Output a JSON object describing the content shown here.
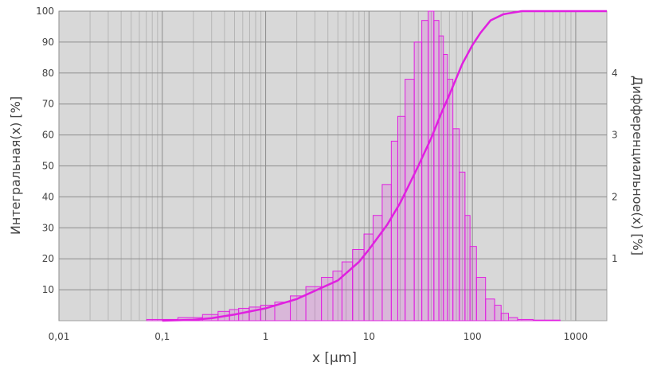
{
  "chart_data": {
    "type": "bar",
    "title": "",
    "xlabel": "x [µm]",
    "ylabel": "Интегральная(x) [%]",
    "ylabel_right": "Дифференциальное(x) [%]",
    "x_scale": "log",
    "xlim": [
      0.01,
      2000
    ],
    "ylim": [
      0,
      100
    ],
    "ylim_right": [
      0,
      5
    ],
    "grid": true,
    "legend": "none",
    "x_ticks": [
      {
        "value": 0.01,
        "label": "0,01"
      },
      {
        "value": 0.1,
        "label": "0,1"
      },
      {
        "value": 1,
        "label": "1"
      },
      {
        "value": 10,
        "label": "10"
      },
      {
        "value": 100,
        "label": "100"
      },
      {
        "value": 1000,
        "label": "1000"
      }
    ],
    "y_ticks": [
      {
        "value": 10,
        "label": "10"
      },
      {
        "value": 20,
        "label": "20"
      },
      {
        "value": 30,
        "label": "30"
      },
      {
        "value": 40,
        "label": "40"
      },
      {
        "value": 50,
        "label": "50"
      },
      {
        "value": 60,
        "label": "60"
      },
      {
        "value": 70,
        "label": "70"
      },
      {
        "value": 80,
        "label": "80"
      },
      {
        "value": 90,
        "label": "90"
      },
      {
        "value": 100,
        "label": "100"
      }
    ],
    "y_ticks_right": [
      {
        "value": 1,
        "label": "1"
      },
      {
        "value": 2,
        "label": "2"
      },
      {
        "value": 3,
        "label": "3"
      },
      {
        "value": 4,
        "label": "4"
      }
    ],
    "colors": {
      "plot_bg": "#d8d8d8",
      "series": "#e020e0",
      "grid": "#8c8c8c"
    },
    "series": [
      {
        "kind": "histogram",
        "axis": "right",
        "x": [
          0.1,
          0.2,
          0.3,
          0.4,
          0.5,
          0.6,
          0.8,
          1,
          1.5,
          2,
          3,
          4,
          5,
          6,
          8,
          10,
          12,
          15,
          18,
          20,
          25,
          30,
          35,
          40,
          45,
          50,
          55,
          60,
          70,
          80,
          90,
          100,
          120,
          150,
          180,
          200,
          250,
          300,
          500,
          1000
        ],
        "values": [
          0.02,
          0.05,
          0.1,
          0.15,
          0.18,
          0.2,
          0.22,
          0.25,
          0.3,
          0.4,
          0.55,
          0.7,
          0.8,
          0.95,
          1.15,
          1.4,
          1.7,
          2.2,
          2.9,
          3.3,
          3.9,
          4.5,
          4.85,
          5.0,
          4.85,
          4.6,
          4.3,
          3.9,
          3.1,
          2.4,
          1.7,
          1.2,
          0.7,
          0.35,
          0.25,
          0.12,
          0.05,
          0.02,
          0.01,
          0.0
        ]
      },
      {
        "kind": "line",
        "axis": "left",
        "x": [
          0.1,
          0.2,
          0.3,
          0.5,
          1,
          2,
          5,
          8,
          10,
          15,
          20,
          30,
          40,
          50,
          60,
          80,
          100,
          120,
          150,
          200,
          300,
          2000
        ],
        "values": [
          0,
          0.3,
          0.8,
          2,
          4,
          7,
          13,
          19,
          23,
          31,
          38,
          50,
          59,
          67,
          73,
          83,
          89,
          93,
          97,
          99,
          100,
          100
        ]
      }
    ]
  }
}
